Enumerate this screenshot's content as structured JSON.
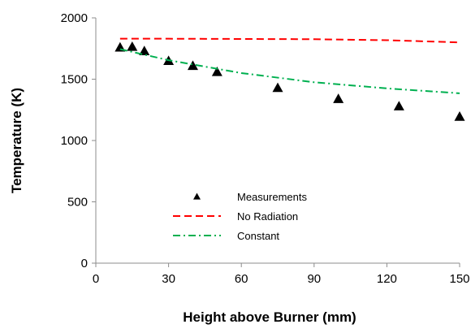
{
  "chart_data": {
    "type": "line",
    "title": "",
    "xlabel": "Height above Burner (mm)",
    "ylabel": "Temperature (K)",
    "xlim": [
      0,
      150
    ],
    "ylim": [
      0,
      2000
    ],
    "xticks": [
      0,
      30,
      60,
      90,
      120,
      150
    ],
    "yticks": [
      0,
      500,
      1000,
      1500,
      2000
    ],
    "grid": false,
    "legend_position": "lower-middle",
    "series": [
      {
        "name": "Measurements",
        "kind": "scatter",
        "marker": "triangle",
        "color": "#000000",
        "x": [
          10,
          15,
          20,
          30,
          40,
          50,
          75,
          100,
          125,
          150
        ],
        "y": [
          1760,
          1765,
          1730,
          1650,
          1610,
          1560,
          1430,
          1340,
          1280,
          1195
        ]
      },
      {
        "name": "No Radiation",
        "kind": "line",
        "dash": "dashed",
        "color": "#ff0000",
        "x": [
          10,
          30,
          60,
          90,
          120,
          150
        ],
        "y": [
          1830,
          1830,
          1828,
          1826,
          1818,
          1800
        ]
      },
      {
        "name": "Constant",
        "kind": "line",
        "dash": "dash-dot",
        "color": "#00b050",
        "x": [
          10,
          30,
          60,
          90,
          120,
          150
        ],
        "y": [
          1745,
          1655,
          1550,
          1475,
          1425,
          1385
        ]
      }
    ]
  }
}
